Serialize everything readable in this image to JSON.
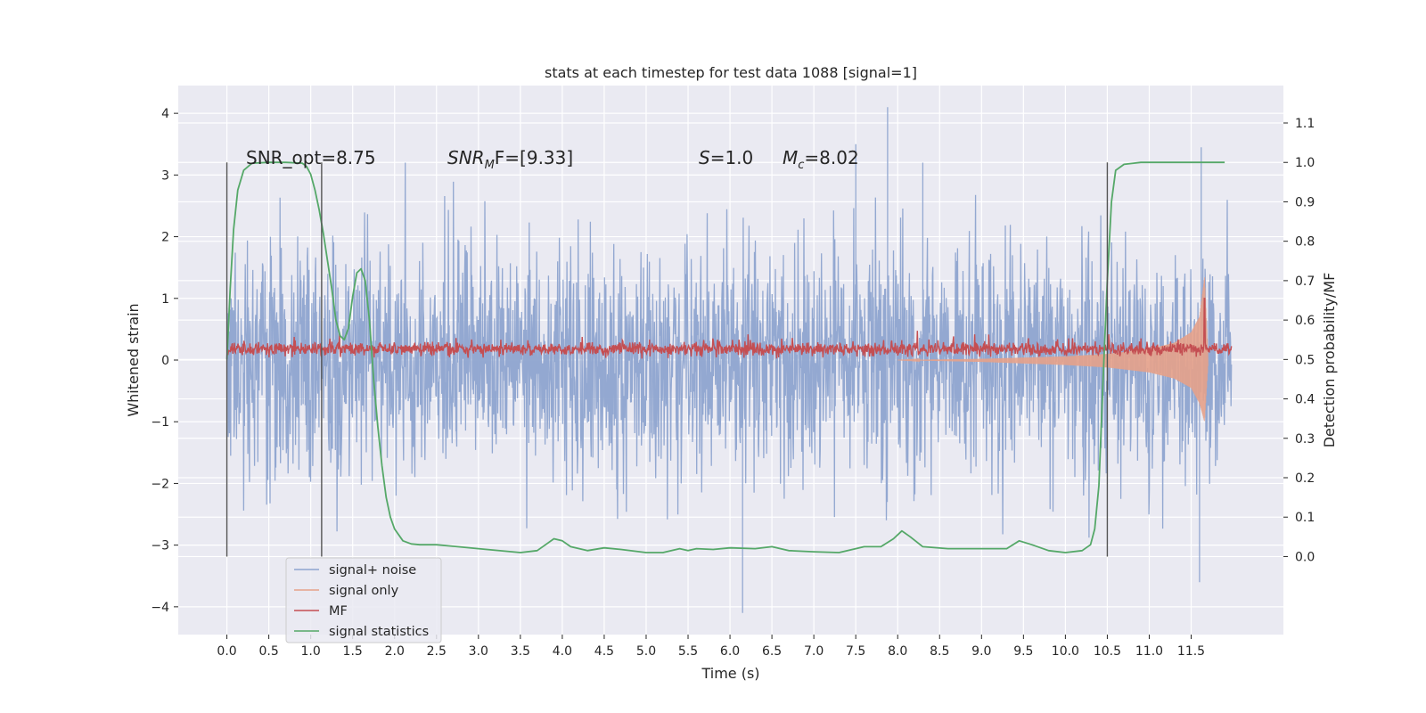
{
  "chart_data": {
    "type": "line",
    "title": "stats at each timestep for test data 1088 [signal=1]",
    "xlabel": "Time (s)",
    "ylabel_left": "Whitened strain",
    "ylabel_right": "Detection probability/MF",
    "xlim": [
      -0.58,
      12.6
    ],
    "ylim_left": [
      -4.45,
      4.45
    ],
    "ylim_right": [
      -0.198,
      1.195
    ],
    "x_ticks": [
      "0.0",
      "0.5",
      "1.0",
      "1.5",
      "2.0",
      "2.5",
      "3.0",
      "3.5",
      "4.0",
      "4.5",
      "5.0",
      "5.5",
      "6.0",
      "6.5",
      "7.0",
      "7.5",
      "8.0",
      "8.5",
      "9.0",
      "9.5",
      "10.0",
      "10.5",
      "11.0",
      "11.5"
    ],
    "y_ticks_left": [
      "−4",
      "−3",
      "−2",
      "−1",
      "0",
      "1",
      "2",
      "3",
      "4"
    ],
    "y_ticks_right": [
      "0.0",
      "0.1",
      "0.2",
      "0.3",
      "0.4",
      "0.5",
      "0.6",
      "0.7",
      "0.8",
      "0.9",
      "1.0",
      "1.1"
    ],
    "grid": true,
    "legend_position": "lower-left",
    "annotations": {
      "snr_opt": "SNR_opt=8.75",
      "snr_mf_main": "SNR",
      "snr_mf_sub": "M",
      "snr_mf_rest": "F=[9.33]",
      "s_italic": "S",
      "s_rest": "=1.0",
      "mc_main": "M",
      "mc_sub": "c",
      "mc_rest": "=8.02"
    },
    "vertical_markers": [
      0.0,
      1.13,
      10.5
    ],
    "series": [
      {
        "name": "signal+ noise",
        "axis": "left",
        "color": "#8ea4cf",
        "description_x_range": [
          0.0,
          11.98
        ],
        "envelope_abs": 2.0,
        "spike_peaks": [
          {
            "x": 7.88,
            "y": 4.1
          },
          {
            "x": 6.15,
            "y": -4.1
          },
          {
            "x": 7.5,
            "y": 3.5
          },
          {
            "x": 8.3,
            "y": 3.2
          },
          {
            "x": 11.6,
            "y": -3.6
          },
          {
            "x": 11.62,
            "y": 3.45
          }
        ]
      },
      {
        "name": "signal only",
        "axis": "left",
        "color": "#e6a18a",
        "x": [
          8.0,
          9.0,
          10.0,
          10.5,
          11.0,
          11.3,
          11.5,
          11.6,
          11.66,
          11.7
        ],
        "y_upper": [
          0.0,
          0.02,
          0.06,
          0.1,
          0.18,
          0.28,
          0.45,
          0.7,
          1.35,
          0.1
        ],
        "y_lower": [
          0.0,
          -0.03,
          -0.08,
          -0.12,
          -0.2,
          -0.3,
          -0.45,
          -0.7,
          -1.0,
          -0.1
        ]
      },
      {
        "name": "MF",
        "axis": "left",
        "color": "#c44e52",
        "x_range": [
          0.0,
          11.98
        ],
        "baseline": 0.18,
        "noise_amp": 0.1,
        "peak": {
          "x": 11.66,
          "y": 1.0
        }
      },
      {
        "name": "signal statistics",
        "axis": "right",
        "color": "#55a868",
        "x": [
          0.0,
          0.04,
          0.08,
          0.13,
          0.2,
          0.3,
          0.5,
          0.7,
          0.9,
          0.95,
          1.0,
          1.05,
          1.1,
          1.15,
          1.2,
          1.25,
          1.3,
          1.35,
          1.4,
          1.45,
          1.5,
          1.55,
          1.6,
          1.65,
          1.7,
          1.75,
          1.8,
          1.85,
          1.9,
          1.95,
          2.0,
          2.1,
          2.2,
          2.3,
          2.5,
          3.0,
          3.5,
          3.7,
          3.8,
          3.9,
          4.0,
          4.1,
          4.3,
          4.5,
          4.7,
          5.0,
          5.2,
          5.4,
          5.5,
          5.6,
          5.8,
          6.0,
          6.3,
          6.5,
          6.7,
          7.0,
          7.3,
          7.5,
          7.6,
          7.8,
          7.95,
          8.05,
          8.15,
          8.3,
          8.6,
          9.0,
          9.3,
          9.45,
          9.6,
          9.8,
          10.0,
          10.2,
          10.3,
          10.35,
          10.4,
          10.45,
          10.5,
          10.55,
          10.6,
          10.7,
          10.9,
          11.2,
          11.5,
          11.7,
          11.9
        ],
        "y": [
          0.5,
          0.68,
          0.83,
          0.93,
          0.98,
          0.998,
          1.0,
          1.0,
          0.998,
          0.99,
          0.97,
          0.93,
          0.88,
          0.82,
          0.75,
          0.68,
          0.6,
          0.56,
          0.55,
          0.58,
          0.66,
          0.72,
          0.73,
          0.7,
          0.6,
          0.45,
          0.33,
          0.23,
          0.15,
          0.1,
          0.07,
          0.04,
          0.032,
          0.03,
          0.03,
          0.02,
          0.01,
          0.015,
          0.03,
          0.045,
          0.04,
          0.025,
          0.015,
          0.022,
          0.018,
          0.01,
          0.01,
          0.02,
          0.015,
          0.02,
          0.018,
          0.022,
          0.02,
          0.025,
          0.015,
          0.012,
          0.01,
          0.02,
          0.025,
          0.025,
          0.045,
          0.065,
          0.05,
          0.025,
          0.02,
          0.02,
          0.02,
          0.04,
          0.03,
          0.015,
          0.01,
          0.015,
          0.03,
          0.07,
          0.18,
          0.45,
          0.7,
          0.9,
          0.98,
          0.995,
          1.0,
          1.0,
          1.0,
          1.0,
          1.0
        ]
      }
    ]
  }
}
